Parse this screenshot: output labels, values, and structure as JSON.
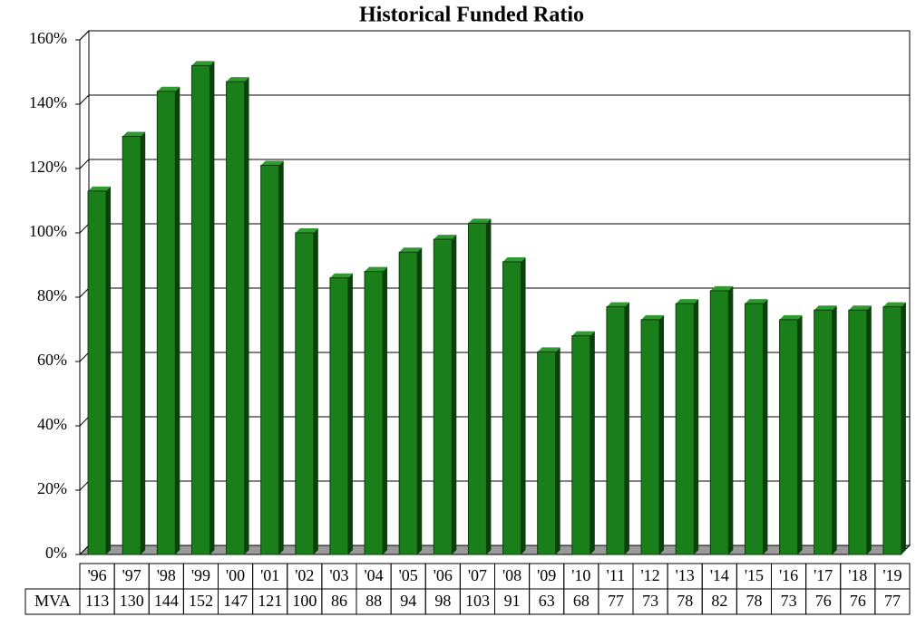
{
  "chart_data": {
    "type": "bar",
    "title": "Historical Funded Ratio",
    "categories": [
      "'96",
      "'97",
      "'98",
      "'99",
      "'00",
      "'01",
      "'02",
      "'03",
      "'04",
      "'05",
      "'06",
      "'07",
      "'08",
      "'09",
      "'10",
      "'11",
      "'12",
      "'13",
      "'14",
      "'15",
      "'16",
      "'17",
      "'18",
      "'19"
    ],
    "series": [
      {
        "name": "MVA",
        "color": "#1a7f1a",
        "values": [
          113,
          130,
          144,
          152,
          147,
          121,
          100,
          86,
          88,
          94,
          98,
          103,
          91,
          63,
          68,
          77,
          73,
          78,
          82,
          78,
          73,
          76,
          76,
          77
        ]
      }
    ],
    "ylim": [
      0,
      160
    ],
    "yticks": [
      {
        "value": 0,
        "label": "0%"
      },
      {
        "value": 20,
        "label": "20%"
      },
      {
        "value": 40,
        "label": "40%"
      },
      {
        "value": 60,
        "label": "60%"
      },
      {
        "value": 80,
        "label": "80%"
      },
      {
        "value": 100,
        "label": "100%"
      },
      {
        "value": 120,
        "label": "120%"
      },
      {
        "value": 140,
        "label": "140%"
      },
      {
        "value": 160,
        "label": "160%"
      }
    ],
    "grid": true
  }
}
